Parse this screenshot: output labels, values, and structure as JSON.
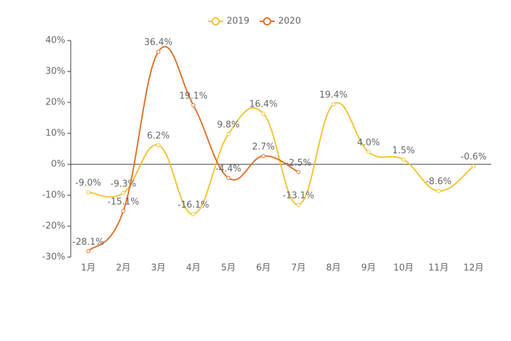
{
  "chart_data": {
    "type": "line",
    "categories": [
      "1月",
      "2月",
      "3月",
      "4月",
      "5月",
      "6月",
      "7月",
      "8月",
      "9月",
      "10月",
      "11月",
      "12月"
    ],
    "series": [
      {
        "name": "2019",
        "color": "#f2c232",
        "values": [
          -9.0,
          -9.3,
          6.2,
          -16.1,
          9.8,
          16.4,
          -13.1,
          19.4,
          4.0,
          1.5,
          -8.6,
          -0.6
        ],
        "value_labels": [
          "-9.0%",
          "-9.3%",
          "6.2%",
          "-16.1%",
          "9.8%",
          "16.4%",
          "-13.1%",
          "19.4%",
          "4.0%",
          "1.5%",
          "-8.6%",
          "-0.6%"
        ]
      },
      {
        "name": "2020",
        "color": "#e0702a",
        "values": [
          -28.1,
          -15.1,
          36.4,
          19.1,
          -4.4,
          2.7,
          -2.5,
          null,
          null,
          null,
          null,
          null
        ],
        "value_labels": [
          "-28.1%",
          "-15.1%",
          "36.4%",
          "19.1%",
          "-4.4%",
          "2.7%",
          "-2.5%",
          null,
          null,
          null,
          null,
          null
        ]
      }
    ],
    "ylim": [
      -30,
      40
    ],
    "yticks": [
      {
        "value": -30,
        "label": "-30%"
      },
      {
        "value": -20,
        "label": "-20%"
      },
      {
        "value": -10,
        "label": "-10%"
      },
      {
        "value": 0,
        "label": "0%"
      },
      {
        "value": 10,
        "label": "10%"
      },
      {
        "value": 20,
        "label": "20%"
      },
      {
        "value": 30,
        "label": "30%"
      },
      {
        "value": 40,
        "label": "40%"
      }
    ],
    "legend": "top"
  }
}
